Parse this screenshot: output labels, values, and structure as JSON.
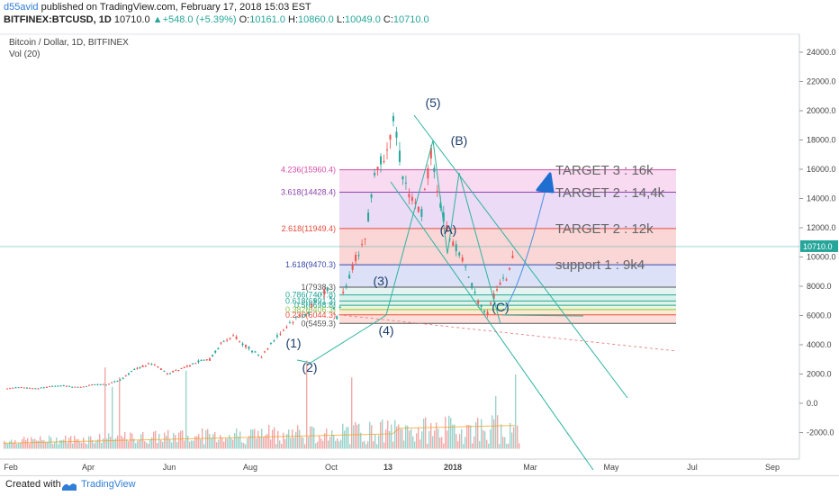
{
  "header": {
    "author": "d55avid",
    "published": " published on TradingView.com, February 17, 2018 15:03 EST",
    "symbol": "BITFINEX:BTCUSD, 1D",
    "last": "10710.0",
    "change_arrow": "▲",
    "change": "+548.0 (+5.39%)",
    "o_label": "O:",
    "o_val": "10161.0",
    "h_label": "H:",
    "h_val": "10860.0",
    "l_label": "L:",
    "l_val": "10049.0",
    "c_label": "C:",
    "c_val": "10710.0"
  },
  "chart_title": "Bitcoin / Dollar, 1D, BITFINEX",
  "indicator_label": "Vol (20)",
  "price_badge": "10710.0",
  "footer": {
    "created": "Created with",
    "brand": "TradingView"
  },
  "colors": {
    "up": "#26a69a",
    "down": "#ef5350",
    "accent": "#2f7ed8"
  },
  "chart_data": {
    "type": "candlestick",
    "yticks": [
      "24000.0",
      "22000.0",
      "20000.0",
      "18000.0",
      "16000.0",
      "14000.0",
      "12000.0",
      "10000.0",
      "8000.0",
      "6000.0",
      "4000.0",
      "2000.0",
      "0.0",
      "-2000.0"
    ],
    "xticks": [
      "Feb",
      "Apr",
      "Jun",
      "Aug",
      "Oct",
      "13",
      "2018",
      "Mar",
      "May",
      "Jul",
      "Sep"
    ],
    "last_price": 10710,
    "fib_levels": [
      {
        "label": "4.236(15960.4)",
        "price": 15960.4,
        "color": "#d64da8"
      },
      {
        "label": "3.618(14428.4)",
        "price": 14428.4,
        "color": "#8e44ad"
      },
      {
        "label": "2.618(11949.4)",
        "price": 11949.4,
        "color": "#e74c3c"
      },
      {
        "label": "1.618(9470.3)",
        "price": 9470.3,
        "color": "#3949ab"
      },
      {
        "label": "1(7938.3)",
        "price": 7938.3,
        "color": "#555555"
      },
      {
        "label": "0.786(7407.8)",
        "price": 7407.8,
        "color": "#26a69a"
      },
      {
        "label": "0.618(6991.3)",
        "price": 6991.3,
        "color": "#26a69a"
      },
      {
        "label": "0.5(6698.8)",
        "price": 6698.8,
        "color": "#26a69a"
      },
      {
        "label": "0.382(6406.3)",
        "price": 6406.3,
        "color": "#8bc34a"
      },
      {
        "label": "0.236(6044.3)",
        "price": 6044.3,
        "color": "#e74c3c"
      },
      {
        "label": "0(5459.3)",
        "price": 5459.3,
        "color": "#555555"
      }
    ],
    "wave_labels": [
      "(1)",
      "(2)",
      "(3)",
      "(4)",
      "(5)",
      "(A)",
      "(B)",
      "(C)"
    ],
    "annotations": [
      "TARGET 3 : 16k",
      "TARGET 2 : 14,4k",
      "TARGET 2 : 12k",
      "support 1 : 9k4"
    ],
    "price_path": [
      [
        0.0,
        1000
      ],
      [
        0.03,
        1100
      ],
      [
        0.06,
        1000
      ],
      [
        0.09,
        1150
      ],
      [
        0.12,
        1200
      ],
      [
        0.15,
        1100
      ],
      [
        0.18,
        1250
      ],
      [
        0.21,
        1300
      ],
      [
        0.24,
        1600
      ],
      [
        0.27,
        2300
      ],
      [
        0.3,
        2700
      ],
      [
        0.32,
        2500
      ],
      [
        0.34,
        2000
      ],
      [
        0.37,
        2400
      ],
      [
        0.4,
        2800
      ],
      [
        0.43,
        3000
      ],
      [
        0.46,
        4300
      ],
      [
        0.48,
        4600
      ],
      [
        0.5,
        4100
      ],
      [
        0.52,
        3600
      ],
      [
        0.54,
        3200
      ],
      [
        0.56,
        4100
      ],
      [
        0.58,
        4800
      ],
      [
        0.6,
        5500
      ],
      [
        0.62,
        6000
      ],
      [
        0.64,
        6200
      ],
      [
        0.66,
        7400
      ],
      [
        0.68,
        7700
      ],
      [
        0.7,
        5900
      ],
      [
        0.72,
        8200
      ],
      [
        0.74,
        9900
      ],
      [
        0.76,
        11300
      ],
      [
        0.78,
        15800
      ],
      [
        0.8,
        17000
      ],
      [
        0.82,
        19300
      ],
      [
        0.84,
        15600
      ],
      [
        0.86,
        13800
      ],
      [
        0.88,
        13000
      ],
      [
        0.9,
        17200
      ],
      [
        0.92,
        13500
      ],
      [
        0.94,
        11200
      ],
      [
        0.96,
        10400
      ],
      [
        0.98,
        8600
      ],
      [
        1.0,
        7000
      ],
      [
        1.02,
        6100
      ],
      [
        1.04,
        7900
      ],
      [
        1.06,
        8600
      ],
      [
        1.08,
        10700
      ]
    ]
  }
}
